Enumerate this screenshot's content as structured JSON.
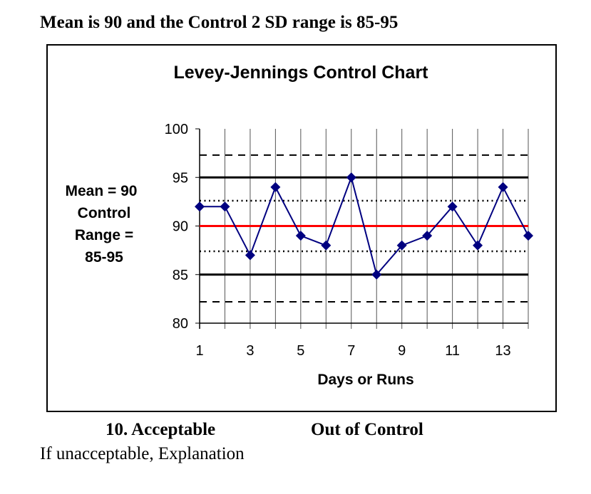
{
  "heading": "Mean is 90 and the Control 2 SD range is 85-95",
  "footer": {
    "option_acceptable": "10. Acceptable",
    "option_out_of_control": "Out of Control",
    "explanation_prompt": "If unacceptable, Explanation"
  },
  "chart_data": {
    "type": "line",
    "title": "Levey-Jennings Control Chart",
    "xlabel": "Days or Runs",
    "ylabel": "",
    "side_annotation": [
      "Mean = 90",
      "Control",
      "Range =",
      "85-95"
    ],
    "x": [
      1,
      2,
      3,
      4,
      5,
      6,
      7,
      8,
      9,
      10,
      11,
      12,
      13,
      14
    ],
    "x_tick_labels": [
      "1",
      "3",
      "5",
      "7",
      "9",
      "11",
      "13"
    ],
    "x_ticks": [
      1,
      3,
      5,
      7,
      9,
      11,
      13
    ],
    "y_ticks": [
      80,
      85,
      90,
      95,
      100
    ],
    "ylim": [
      80,
      100
    ],
    "xlim": [
      1,
      14
    ],
    "grid": "vertical",
    "series": [
      {
        "values": [
          92,
          92,
          87,
          94,
          89,
          88,
          95,
          85,
          88,
          89,
          92,
          88,
          94,
          89
        ],
        "color": "#000080",
        "marker": "diamond"
      }
    ],
    "reference_lines": [
      {
        "value": 90,
        "style": "solid",
        "color": "#ff0000"
      },
      {
        "value": 95,
        "style": "solid",
        "color": "#000000"
      },
      {
        "value": 85,
        "style": "solid",
        "color": "#000000"
      },
      {
        "value": 92.6,
        "style": "dotted",
        "color": "#000000"
      },
      {
        "value": 87.4,
        "style": "dotted",
        "color": "#000000"
      },
      {
        "value": 97.3,
        "style": "dashed",
        "color": "#000000"
      },
      {
        "value": 82.2,
        "style": "dashed",
        "color": "#000000"
      }
    ]
  }
}
